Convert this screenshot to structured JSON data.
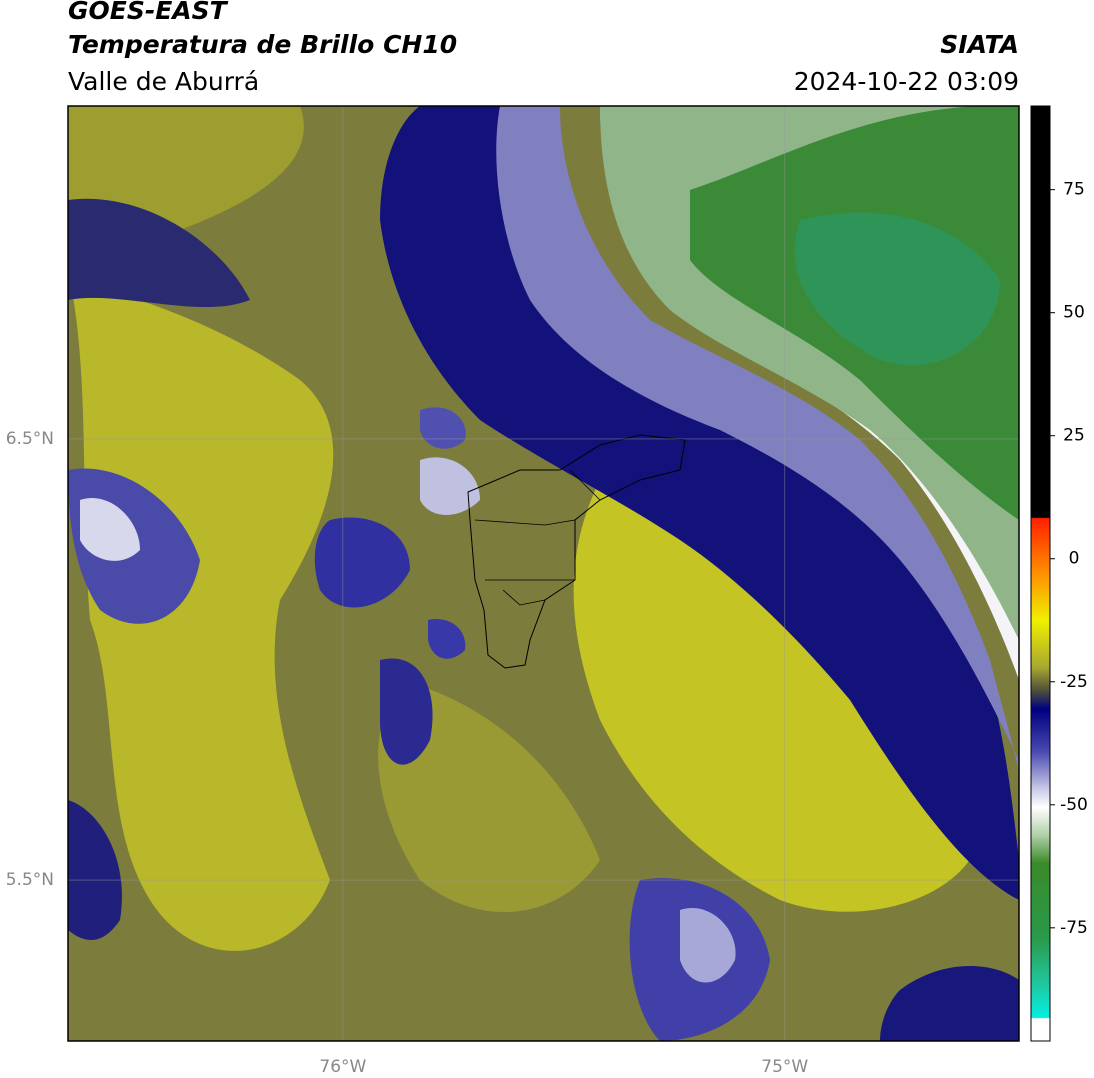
{
  "header": {
    "title": "GOES-EAST",
    "subtitle": "Temperatura de Brillo CH10",
    "region": "Valle de Aburrá",
    "source": "SIATA",
    "datetime": "2024-10-22 03:09"
  },
  "map": {
    "lon_lim": [
      -76.622,
      -74.47
    ],
    "lat_lim": [
      5.135,
      7.255
    ],
    "lat_ticks": [
      {
        "value": 6.5,
        "label": "6.5°N"
      },
      {
        "value": 5.5,
        "label": "5.5°N"
      }
    ],
    "lon_ticks": [
      {
        "value": -76,
        "label": "76°W"
      },
      {
        "value": -75,
        "label": "75°W"
      }
    ],
    "grid": true
  },
  "colorbar": {
    "lim": [
      -98,
      92
    ],
    "ticks": [
      75,
      50,
      25,
      0,
      -25,
      -50,
      -75
    ]
  }
}
